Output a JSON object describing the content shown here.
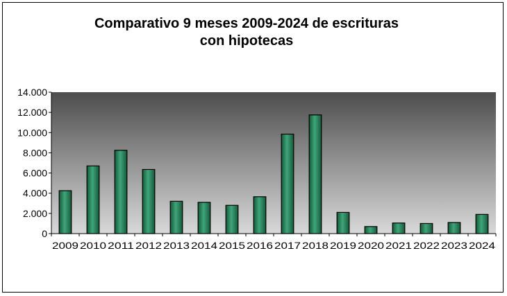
{
  "chart_data": {
    "type": "bar",
    "title_lines": [
      "Comparativo  9 meses  2009-2024  de escrituras",
      "con hipotecas"
    ],
    "categories": [
      "2009",
      "2010",
      "2011",
      "2012",
      "2013",
      "2014",
      "2015",
      "2016",
      "2017",
      "2018",
      "2019",
      "2020",
      "2021",
      "2022",
      "2023",
      "2024"
    ],
    "values": [
      4250,
      6700,
      8250,
      6350,
      3200,
      3100,
      2800,
      3650,
      9850,
      11750,
      2100,
      700,
      1050,
      1000,
      1100,
      1900
    ],
    "y_tick_labels": [
      "0",
      "2.000",
      "4.000",
      "6.000",
      "8.000",
      "10.000",
      "12.000",
      "14.000"
    ],
    "ylim": [
      0,
      14000
    ],
    "y_step": 2000,
    "xlabel": "",
    "ylabel": "",
    "grid": false,
    "legend": "none",
    "colors": {
      "bar_light": "#3fa57a",
      "bar_dark": "#145a3a",
      "bar_edge": "#000000",
      "plot_bg_top": "#4d4d4d",
      "plot_bg_bottom": "#d9d9d9"
    }
  }
}
